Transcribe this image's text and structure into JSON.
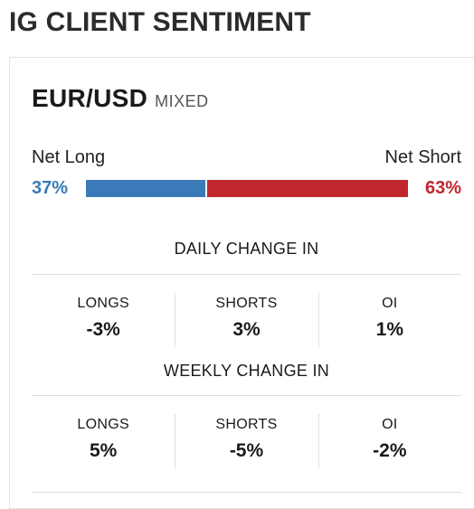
{
  "header": {
    "title": "IG CLIENT SENTIMENT"
  },
  "instrument": {
    "pair": "EUR/USD",
    "bias": "MIXED"
  },
  "sentiment": {
    "long_label": "Net Long",
    "short_label": "Net Short",
    "long_pct_text": "37%",
    "short_pct_text": "63%",
    "long_fraction": 0.37,
    "short_fraction": 0.63,
    "long_color": "#3a7ab8",
    "short_color": "#c0272d"
  },
  "daily": {
    "title": "DAILY CHANGE IN",
    "items": [
      {
        "label": "LONGS",
        "value": "-3%"
      },
      {
        "label": "SHORTS",
        "value": "3%"
      },
      {
        "label": "OI",
        "value": "1%"
      }
    ]
  },
  "weekly": {
    "title": "WEEKLY CHANGE IN",
    "items": [
      {
        "label": "LONGS",
        "value": "5%"
      },
      {
        "label": "SHORTS",
        "value": "-5%"
      },
      {
        "label": "OI",
        "value": "-2%"
      }
    ]
  }
}
